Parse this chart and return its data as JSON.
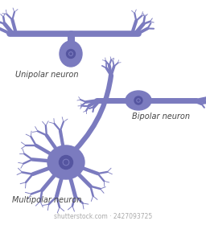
{
  "neuron_color": "#7B7BBF",
  "neuron_dark": "#6060A0",
  "neuron_light": "#9999CC",
  "bg_color": "#ffffff",
  "nucleus_color": "#5555A0",
  "labels": {
    "unipolar": "Unipolar neuron",
    "bipolar": "Bipolar neuron",
    "multipolar": "Multipolar neuron"
  },
  "label_fontsize": 7,
  "label_color": "#444444",
  "watermark": "shutterstock.com · 2427093725",
  "watermark_fontsize": 5.5,
  "watermark_color": "#aaaaaa"
}
